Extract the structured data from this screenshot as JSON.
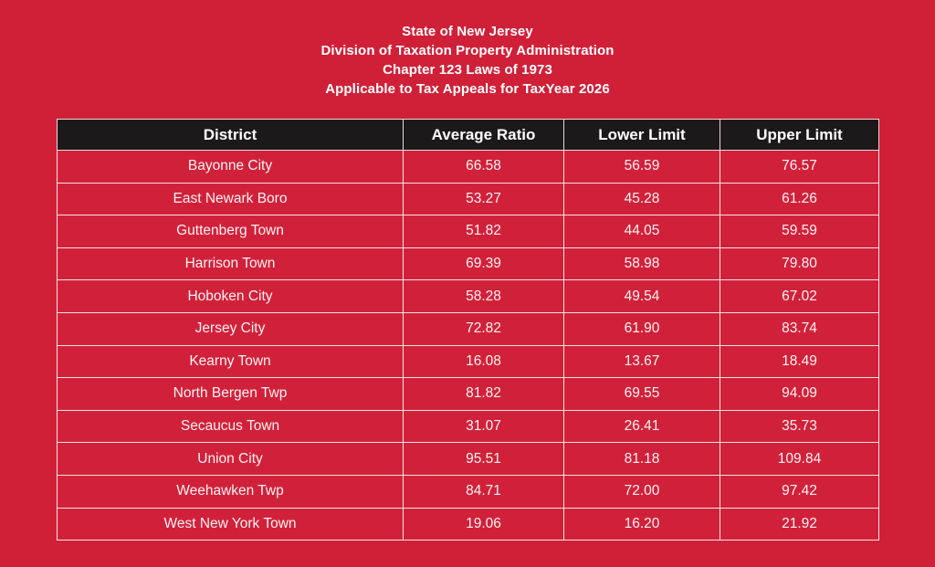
{
  "page": {
    "background_color": "#CF2038",
    "title_lines": [
      "State of New Jersey",
      "Division of Taxation Property Administration",
      "Chapter 123 Laws of 1973",
      "Applicable to Tax Appeals for TaxYear 2026"
    ]
  },
  "colors": {
    "page_background": "#CF2038",
    "header_background": "#1C191B",
    "header_text": "#FFFFFF",
    "row_background": "#D1213A",
    "row_text": "#F9F2F3",
    "cell_border": "#F2E4E6",
    "title_text": "#FFFFFF"
  },
  "table": {
    "header": {
      "columns": [
        "District",
        "Average Ratio",
        "Lower Limit",
        "Upper Limit"
      ]
    },
    "rows": [
      {
        "district": "Bayonne City",
        "average_ratio": "66.58",
        "lower_limit": "56.59",
        "upper_limit": "76.57"
      },
      {
        "district": "East Newark Boro",
        "average_ratio": "53.27",
        "lower_limit": "45.28",
        "upper_limit": "61.26"
      },
      {
        "district": "Guttenberg Town",
        "average_ratio": "51.82",
        "lower_limit": "44.05",
        "upper_limit": "59.59"
      },
      {
        "district": "Harrison Town",
        "average_ratio": "69.39",
        "lower_limit": "58.98",
        "upper_limit": "79.80"
      },
      {
        "district": "Hoboken City",
        "average_ratio": "58.28",
        "lower_limit": "49.54",
        "upper_limit": "67.02"
      },
      {
        "district": "Jersey City",
        "average_ratio": "72.82",
        "lower_limit": "61.90",
        "upper_limit": "83.74"
      },
      {
        "district": "Kearny Town",
        "average_ratio": "16.08",
        "lower_limit": "13.67",
        "upper_limit": "18.49"
      },
      {
        "district": "North Bergen Twp",
        "average_ratio": "81.82",
        "lower_limit": "69.55",
        "upper_limit": "94.09"
      },
      {
        "district": "Secaucus Town",
        "average_ratio": "31.07",
        "lower_limit": "26.41",
        "upper_limit": "35.73"
      },
      {
        "district": "Union City",
        "average_ratio": "95.51",
        "lower_limit": "81.18",
        "upper_limit": "109.84"
      },
      {
        "district": "Weehawken Twp",
        "average_ratio": "84.71",
        "lower_limit": "72.00",
        "upper_limit": "97.42"
      },
      {
        "district": "West New York Town",
        "average_ratio": "19.06",
        "lower_limit": "16.20",
        "upper_limit": "21.92"
      }
    ]
  }
}
